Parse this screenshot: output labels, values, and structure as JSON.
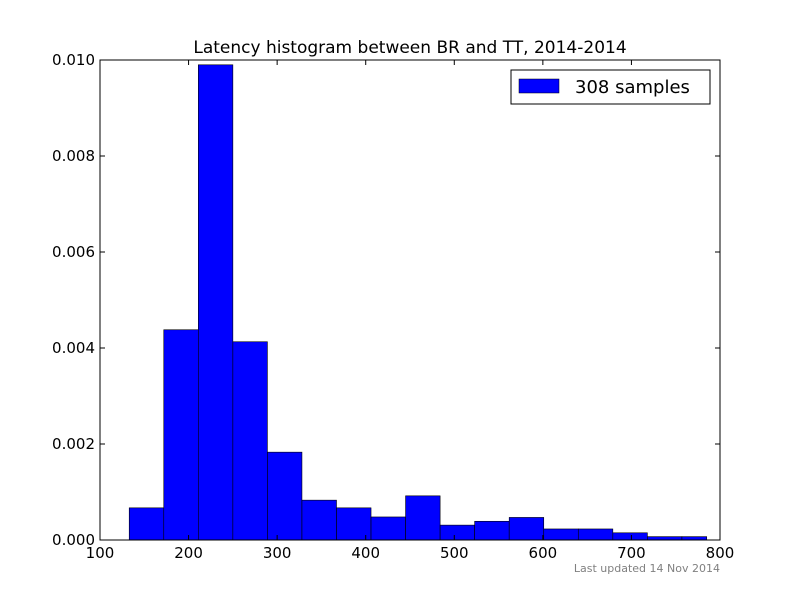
{
  "chart_data": {
    "type": "bar",
    "title": "Latency histogram between BR and TT, 2014-2014",
    "xlabel": "",
    "ylabel": "",
    "xlim": [
      100,
      800
    ],
    "ylim": [
      0,
      0.01
    ],
    "x_ticks": [
      "100",
      "200",
      "300",
      "400",
      "500",
      "600",
      "700",
      "800"
    ],
    "y_ticks": [
      "0.000",
      "0.002",
      "0.004",
      "0.006",
      "0.008",
      "0.010"
    ],
    "bin_edges": [
      133,
      172,
      211,
      250,
      289,
      328,
      367,
      406,
      445,
      484,
      523,
      562,
      601,
      640,
      679,
      718,
      757,
      785
    ],
    "series": [
      {
        "name": "308 samples",
        "values": [
          0.00067,
          0.00438,
          0.0099,
          0.00413,
          0.00183,
          0.00083,
          0.00067,
          0.00048,
          0.00092,
          0.00031,
          0.00039,
          0.00047,
          0.00023,
          0.00023,
          0.00015,
          7e-05,
          7e-05
        ]
      }
    ],
    "bar_color": "#0000ff",
    "legend_position": "top-right",
    "grid": false
  },
  "footer": {
    "text": "Last updated 14 Nov 2014"
  }
}
